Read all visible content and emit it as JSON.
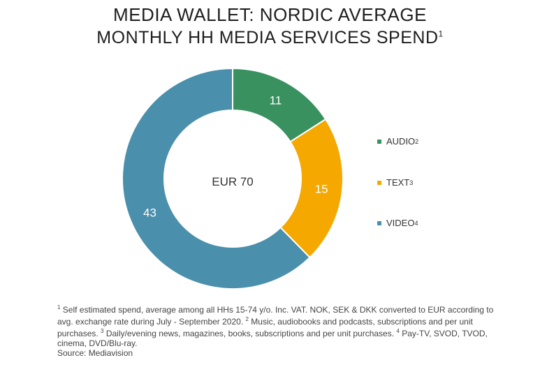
{
  "title_line1": "MEDIA WALLET: NORDIC AVERAGE",
  "title_line2": "MONTHLY HH MEDIA SERVICES SPEND",
  "title_line2_sup": "1",
  "center_label": "EUR 70",
  "colors": {
    "AUDIO": "#3a9160",
    "TEXT": "#f5a800",
    "VIDEO": "#4a8fab"
  },
  "legend": [
    {
      "label": "AUDIO",
      "sup": "2"
    },
    {
      "label": "TEXT",
      "sup": "3"
    },
    {
      "label": "VIDEO",
      "sup": "4"
    }
  ],
  "footnote": {
    "p1_sup": "1",
    "p1": " Self estimated spend, average among all HHs 15-74 y/o. Inc. VAT. NOK, SEK & DKK converted to EUR according to avg. exchange rate during July - September 2020.",
    "p2_sup": "2",
    "p2": " Music, audiobooks and podcasts, subscriptions and per unit purchases.",
    "p3_sup": "3",
    "p3": " Daily/evening news, magazines, books, subscriptions and per unit purchases.",
    "p4_sup": "4",
    "p4": " Pay-TV, SVOD, TVOD, cinema, DVD/Blu-ray.",
    "source": "Source: Mediavision"
  },
  "chart_data": {
    "type": "pie",
    "donut": true,
    "title": "MEDIA WALLET: NORDIC AVERAGE",
    "subtitle": "MONTHLY HH MEDIA SERVICES SPEND",
    "center_text": "EUR 70",
    "categories": [
      "AUDIO",
      "TEXT",
      "VIDEO"
    ],
    "values": [
      11,
      15,
      43
    ],
    "legend_position": "right"
  }
}
